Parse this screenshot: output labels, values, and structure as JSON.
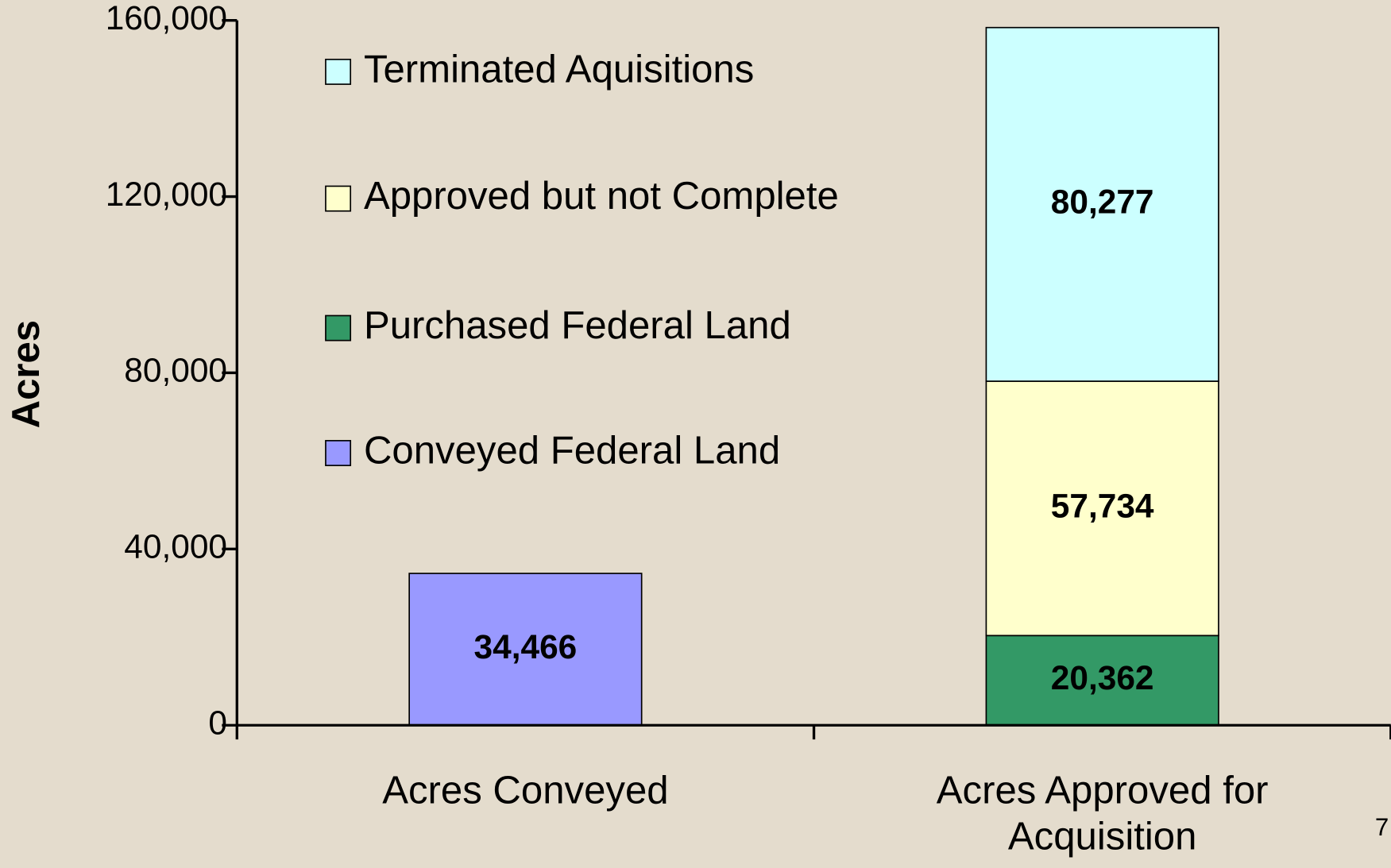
{
  "chart_data": {
    "type": "stacked_bar",
    "y_label": "Acres",
    "categories": [
      "Acres Conveyed",
      "Acres Approved for Acquisition"
    ],
    "series": [
      {
        "name": "Conveyed Federal Land",
        "color": "#9999ff",
        "values": [
          34466,
          null
        ],
        "value_labels": [
          "34,466",
          null
        ]
      },
      {
        "name": "Purchased Federal Land",
        "color": "#339966",
        "values": [
          null,
          20362
        ],
        "value_labels": [
          null,
          "20,362"
        ]
      },
      {
        "name": "Approved but not Complete",
        "color": "#ffffcc",
        "values": [
          null,
          57734
        ],
        "value_labels": [
          null,
          "57,734"
        ]
      },
      {
        "name": "Terminated Aquisitions",
        "color": "#ccffff",
        "values": [
          null,
          80277
        ],
        "value_labels": [
          null,
          "80,277"
        ]
      }
    ],
    "ylim": [
      0,
      160000
    ],
    "yticks": [
      0,
      {
        "value": 40000,
        "label": "40,000"
      },
      {
        "value": 80000,
        "label": "80,000"
      },
      {
        "value": 120000,
        "label": "120,000"
      },
      {
        "value": 160000,
        "label": "160,000"
      }
    ],
    "page_number": "7"
  }
}
